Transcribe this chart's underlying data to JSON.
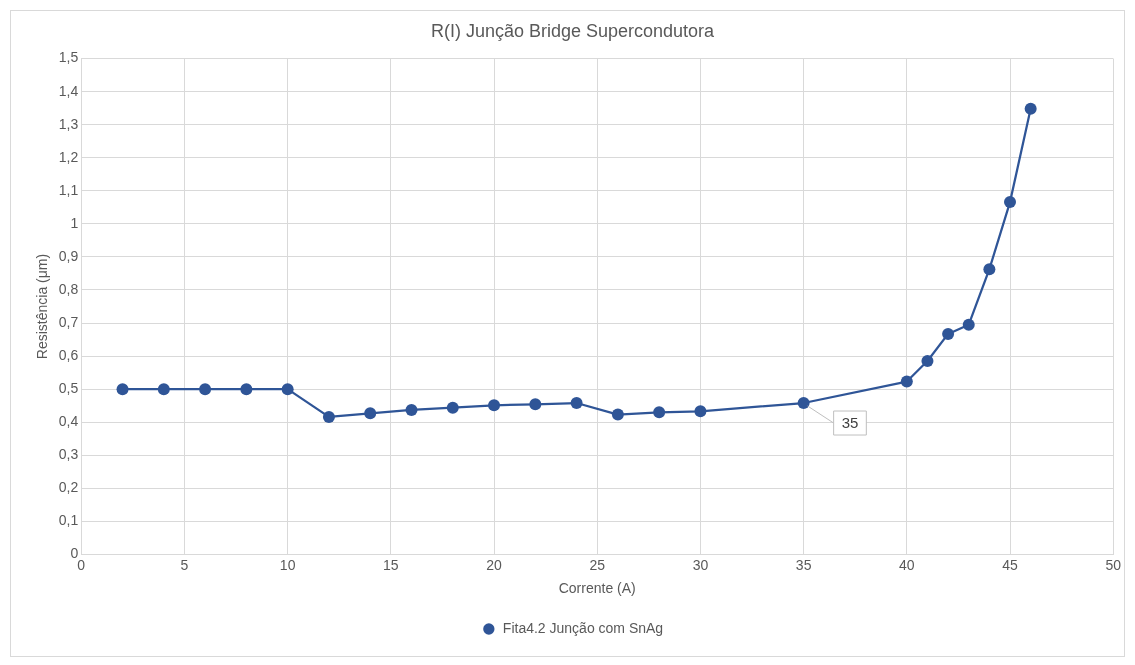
{
  "chart_data": {
    "type": "line",
    "title": "R(I) Junção Bridge Supercondutora",
    "xlabel": "Corrente (A)",
    "ylabel": "Resistência (μm)",
    "series": [
      {
        "name": "Fita4.2 Junção com SnAg",
        "color": "#2f5597",
        "x": [
          2,
          4,
          6,
          8,
          10,
          12,
          14,
          16,
          18,
          20,
          22,
          24,
          26,
          28,
          30,
          35,
          40,
          41,
          42,
          43,
          44,
          45,
          46
        ],
        "values": [
          0.5,
          0.5,
          0.5,
          0.5,
          0.5,
          0.416,
          0.427,
          0.437,
          0.444,
          0.451,
          0.454,
          0.458,
          0.423,
          0.43,
          0.433,
          0.458,
          0.523,
          0.585,
          0.667,
          0.695,
          0.863,
          1.066,
          1.348
        ]
      }
    ],
    "xlim": [
      0,
      50
    ],
    "xticks": [
      0,
      5,
      10,
      15,
      20,
      25,
      30,
      35,
      40,
      45,
      50
    ],
    "ylim": [
      0,
      1.5
    ],
    "yticks": [
      0,
      {
        "value": 0.1,
        "label": "0,1"
      },
      {
        "value": 0.2,
        "label": "0,2"
      },
      {
        "value": 0.3,
        "label": "0,3"
      },
      {
        "value": 0.4,
        "label": "0,4"
      },
      {
        "value": 0.5,
        "label": "0,5"
      },
      {
        "value": 0.6,
        "label": "0,6"
      },
      {
        "value": 0.7,
        "label": "0,7"
      },
      {
        "value": 0.8,
        "label": "0,8"
      },
      {
        "value": 0.9,
        "label": "0,9"
      },
      1,
      {
        "value": 1.1,
        "label": "1,1"
      },
      {
        "value": 1.2,
        "label": "1,2"
      },
      {
        "value": 1.3,
        "label": "1,3"
      },
      {
        "value": 1.4,
        "label": "1,4"
      },
      {
        "value": 1.5,
        "label": "1,5"
      }
    ],
    "annotations": [
      {
        "text": "35",
        "x": 35,
        "y": 0.458
      }
    ],
    "grid": true,
    "legend": "bottom",
    "marker": "circle",
    "line_style": "solid"
  }
}
